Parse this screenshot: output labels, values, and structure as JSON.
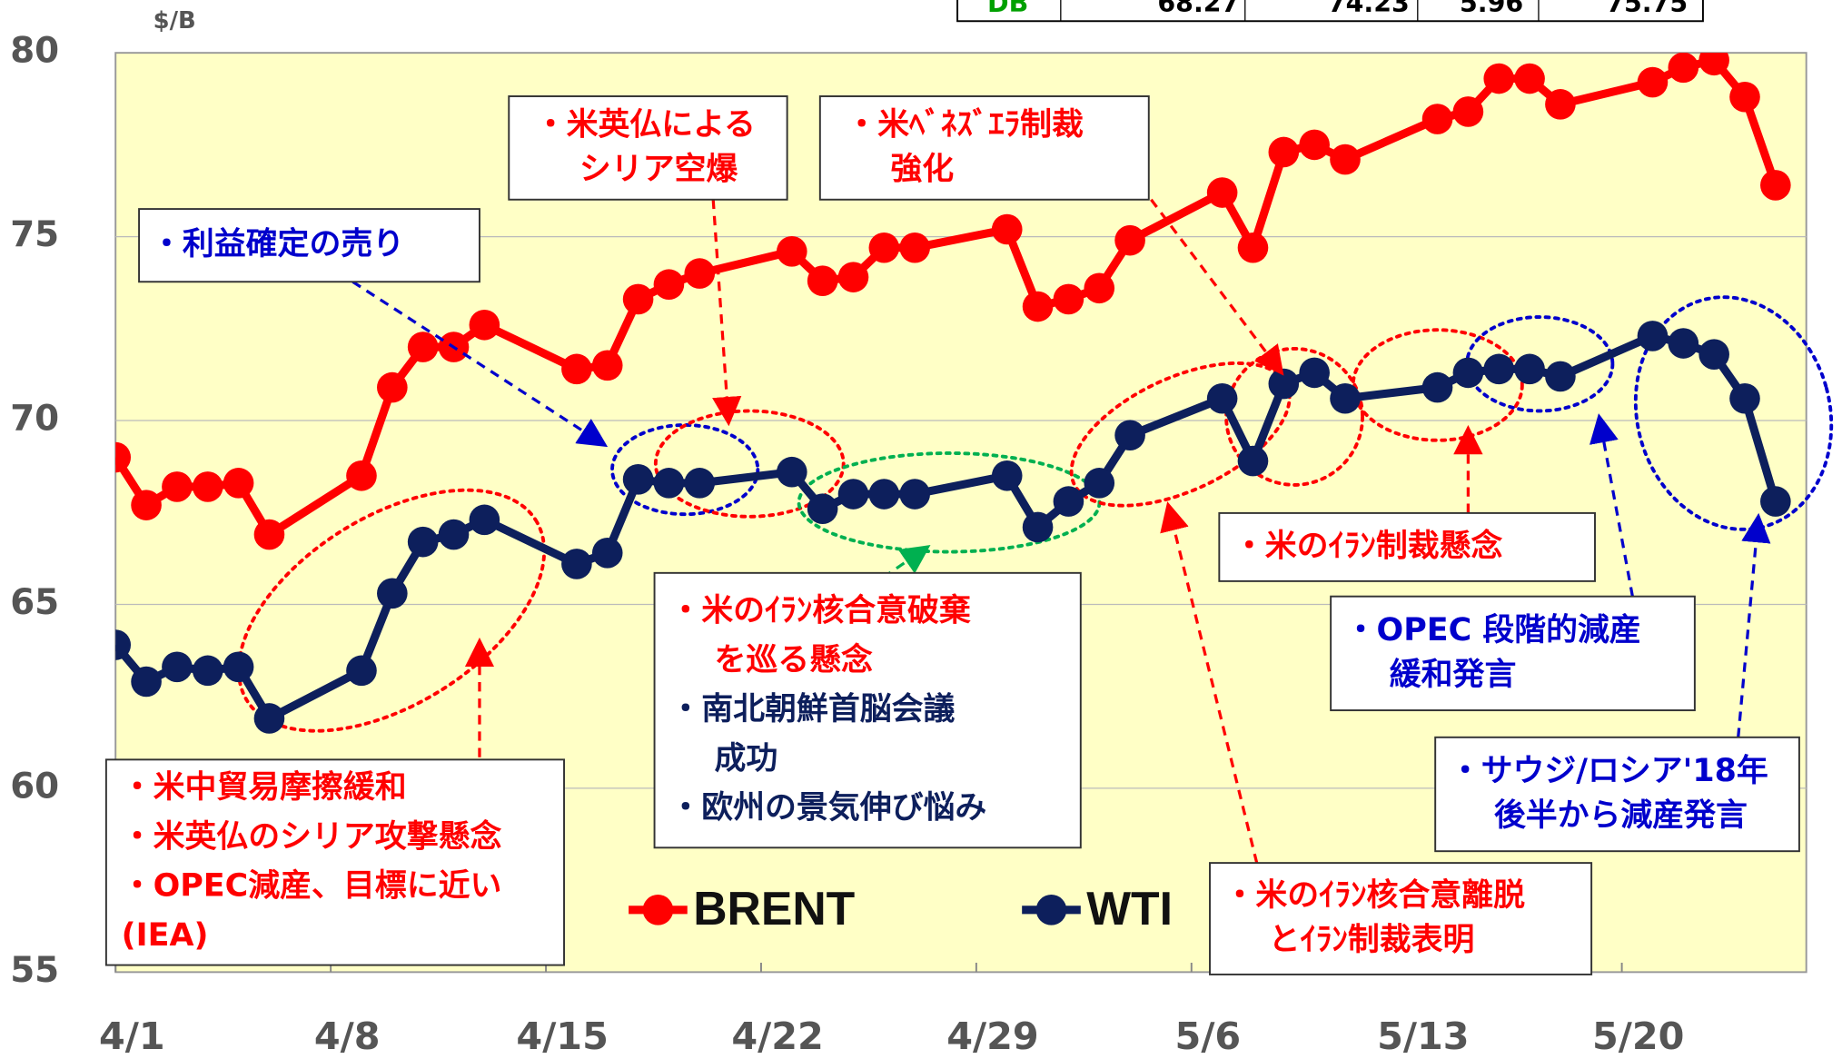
{
  "chart_data": {
    "type": "line",
    "unit_label": "$/B",
    "x": [
      0,
      1,
      2,
      3,
      4,
      5,
      8,
      9,
      10,
      11,
      12,
      15,
      16,
      17,
      18,
      19,
      22,
      23,
      24,
      25,
      26,
      29,
      30,
      31,
      32,
      33,
      36,
      37,
      38,
      39,
      40,
      43,
      44,
      45,
      46,
      47,
      50,
      51,
      52,
      53,
      54
    ],
    "xlim": [
      0,
      55
    ],
    "xticks": [
      {
        "value": 0,
        "label": "4/1"
      },
      {
        "value": 7,
        "label": "4/8"
      },
      {
        "value": 14,
        "label": "4/15"
      },
      {
        "value": 21,
        "label": "4/22"
      },
      {
        "value": 28,
        "label": "4/29"
      },
      {
        "value": 35,
        "label": "5/6"
      },
      {
        "value": 42,
        "label": "5/13"
      },
      {
        "value": 49,
        "label": "5/20"
      }
    ],
    "ylim": [
      55,
      80
    ],
    "yticks": [
      55,
      60,
      65,
      70,
      75,
      80
    ],
    "grid": true,
    "series": [
      {
        "name": "BRENT",
        "color": "#ff0000",
        "values": [
          69.0,
          67.7,
          68.2,
          68.2,
          68.3,
          66.9,
          68.5,
          70.9,
          72.0,
          72.0,
          72.6,
          71.4,
          71.5,
          73.3,
          73.7,
          74.0,
          74.6,
          73.8,
          73.9,
          74.7,
          74.7,
          75.2,
          73.1,
          73.3,
          73.6,
          74.9,
          76.2,
          74.7,
          77.3,
          77.5,
          77.1,
          78.2,
          78.4,
          79.3,
          79.3,
          78.6,
          79.2,
          79.6,
          79.8,
          78.8,
          76.4
        ]
      },
      {
        "name": "WTI",
        "color": "#0d1f5c",
        "values": [
          63.9,
          62.9,
          63.3,
          63.2,
          63.3,
          61.9,
          63.2,
          65.3,
          66.7,
          66.9,
          67.3,
          66.1,
          66.4,
          68.4,
          68.3,
          68.3,
          68.6,
          67.6,
          68.0,
          68.0,
          68.0,
          68.5,
          67.1,
          67.8,
          68.3,
          69.6,
          70.6,
          68.9,
          71.0,
          71.3,
          70.6,
          70.9,
          71.3,
          71.4,
          71.4,
          71.2,
          72.3,
          72.1,
          71.8,
          70.6,
          67.8
        ]
      }
    ]
  },
  "table": {
    "rows": [
      [
        "DB",
        "68.27",
        "74.23",
        "5.96",
        "75.75"
      ]
    ]
  },
  "annotations": [
    {
      "lines": [
        {
          "text": "・米英仏による",
          "color": "#ff0000"
        },
        {
          "text": "シリア空爆",
          "color": "#ff0000"
        }
      ]
    },
    {
      "lines": [
        {
          "text": "・米ﾍﾞﾈｽﾞｴﾗ制裁",
          "color": "#ff0000"
        },
        {
          "text": "強化",
          "color": "#ff0000"
        }
      ]
    },
    {
      "lines": [
        {
          "text": "・利益確定の売り",
          "color": "#0000cc"
        }
      ]
    },
    {
      "lines": [
        {
          "text": "・米中貿易摩擦緩和",
          "color": "#ff0000"
        },
        {
          "text": "・米英仏のシリア攻撃懸念",
          "color": "#ff0000"
        },
        {
          "text": "・OPEC減産、目標に近い",
          "color": "#ff0000"
        },
        {
          "text": "(IEA)",
          "color": "#ff0000"
        }
      ]
    },
    {
      "lines": [
        {
          "text": "・米のｲﾗﾝ核合意破棄",
          "color": "#ff0000"
        },
        {
          "text": "を巡る懸念",
          "color": "#ff0000"
        },
        {
          "text": "・南北朝鮮首脳会議",
          "color": "#0d1f5c"
        },
        {
          "text": "成功",
          "color": "#0d1f5c"
        },
        {
          "text": "・欧州の景気伸び悩み",
          "color": "#0d1f5c"
        }
      ]
    },
    {
      "lines": [
        {
          "text": "・米のｲﾗﾝ制裁懸念",
          "color": "#ff0000"
        }
      ]
    },
    {
      "lines": [
        {
          "text": "・OPEC 段階的減産",
          "color": "#0000cc"
        },
        {
          "text": "緩和発言",
          "color": "#0000cc"
        }
      ]
    },
    {
      "lines": [
        {
          "text": "・サウジ/ロシア'18年",
          "color": "#0000cc"
        },
        {
          "text": "後半から減産発言",
          "color": "#0000cc"
        }
      ]
    },
    {
      "lines": [
        {
          "text": "・米のｲﾗﾝ核合意離脱",
          "color": "#ff0000"
        },
        {
          "text": "とｲﾗﾝ制裁表明",
          "color": "#ff0000"
        }
      ]
    }
  ]
}
